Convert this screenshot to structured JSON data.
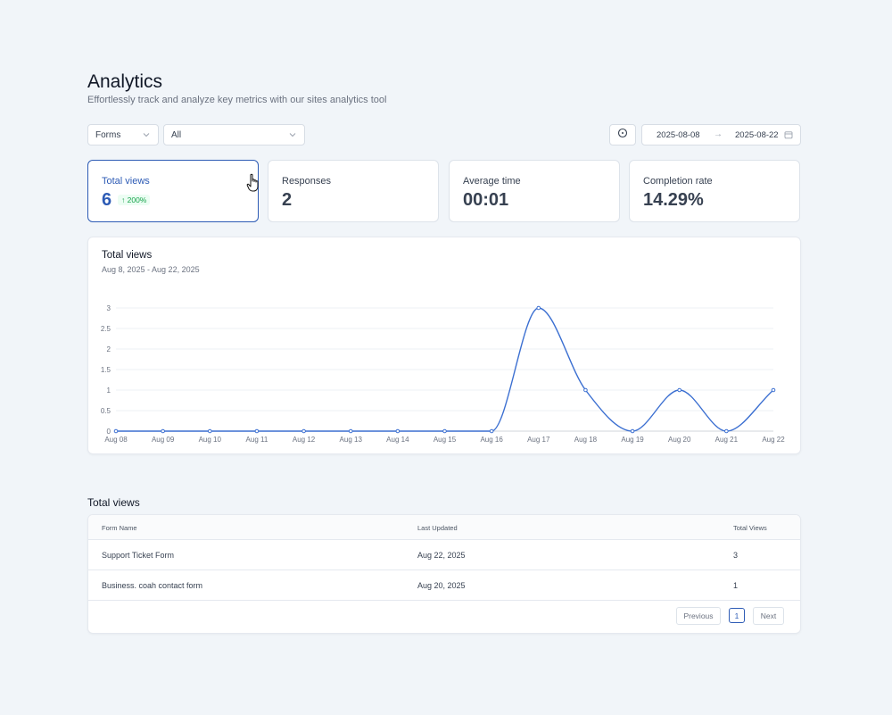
{
  "header": {
    "title": "Analytics",
    "subtitle": "Effortlessly track and analyze key metrics with our sites analytics tool"
  },
  "filters": {
    "type_select": "Forms",
    "scope_select": "All",
    "reset_icon": "clock-reset-icon",
    "date_from": "2025-08-08",
    "date_to": "2025-08-22",
    "calendar_icon": "calendar-icon"
  },
  "stats": [
    {
      "label": "Total views",
      "value": "6",
      "badge": "200%",
      "active": true
    },
    {
      "label": "Responses",
      "value": "2"
    },
    {
      "label": "Average time",
      "value": "00:01"
    },
    {
      "label": "Completion rate",
      "value": "14.29%"
    }
  ],
  "chart_card": {
    "title": "Total views",
    "range": "Aug 8, 2025 - Aug 22, 2025"
  },
  "chart_data": {
    "type": "line",
    "x": [
      "Aug 08",
      "Aug 09",
      "Aug 10",
      "Aug 11",
      "Aug 12",
      "Aug 13",
      "Aug 14",
      "Aug 15",
      "Aug 16",
      "Aug 17",
      "Aug 18",
      "Aug 19",
      "Aug 20",
      "Aug 21",
      "Aug 22"
    ],
    "series": [
      {
        "values": [
          0,
          0,
          0,
          0,
          0,
          0,
          0,
          0,
          0,
          3,
          1,
          0,
          1,
          0,
          1
        ]
      }
    ],
    "yticks": [
      "0",
      "0.5",
      "1",
      "1.5",
      "2",
      "2.5",
      "3"
    ],
    "ylim": [
      0,
      3
    ],
    "grid": true,
    "line_color": "#3b6fd1"
  },
  "table": {
    "title": "Total views",
    "columns": [
      "Form Name",
      "Last Updated",
      "Total Views"
    ],
    "rows": [
      {
        "name": "Support Ticket Form",
        "updated": "Aug 22, 2025",
        "views": "3"
      },
      {
        "name": "Business. coah contact form",
        "updated": "Aug 20, 2025",
        "views": "1"
      }
    ],
    "pagination": {
      "previous": "Previous",
      "page": "1",
      "next": "Next"
    }
  }
}
